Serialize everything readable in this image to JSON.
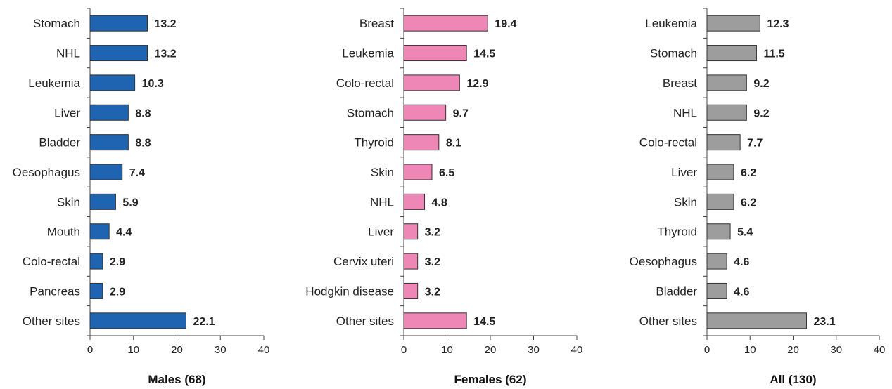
{
  "chart_data": [
    {
      "type": "bar",
      "orientation": "horizontal",
      "xlabel": "Males (68)",
      "bar_color": "#1f64b0",
      "xlim": [
        0,
        40
      ],
      "xticks": [
        0,
        10,
        20,
        30,
        40
      ],
      "categories": [
        "Stomach",
        "NHL",
        "Leukemia",
        "Liver",
        "Bladder",
        "Oesophagus",
        "Skin",
        "Mouth",
        "Colo-rectal",
        "Pancreas",
        "Other sites"
      ],
      "values": [
        13.2,
        13.2,
        10.3,
        8.8,
        8.8,
        7.4,
        5.9,
        4.4,
        2.9,
        2.9,
        22.1
      ],
      "value_labels": [
        "13.2",
        "13.2",
        "10.3",
        "8.8",
        "8.8",
        "7.4",
        "5.9",
        "4.4",
        "2.9",
        "2.9",
        "22.1"
      ],
      "grid": false
    },
    {
      "type": "bar",
      "orientation": "horizontal",
      "xlabel": "Females (62)",
      "bar_color": "#ee86b6",
      "xlim": [
        0,
        40
      ],
      "xticks": [
        0,
        10,
        20,
        30,
        40
      ],
      "categories": [
        "Breast",
        "Leukemia",
        "Colo-rectal",
        "Stomach",
        "Thyroid",
        "Skin",
        "NHL",
        "Liver",
        "Cervix uteri",
        "Hodgkin disease",
        "Other sites"
      ],
      "values": [
        19.4,
        14.5,
        12.9,
        9.7,
        8.1,
        6.5,
        4.8,
        3.2,
        3.2,
        3.2,
        14.5
      ],
      "value_labels": [
        "19.4",
        "14.5",
        "12.9",
        "9.7",
        "8.1",
        "6.5",
        "4.8",
        "3.2",
        "3.2",
        "3.2",
        "14.5"
      ],
      "grid": false
    },
    {
      "type": "bar",
      "orientation": "horizontal",
      "xlabel": "All (130)",
      "bar_color": "#9d9d9d",
      "xlim": [
        0,
        40
      ],
      "xticks": [
        0,
        10,
        20,
        30,
        40
      ],
      "categories": [
        "Leukemia",
        "Stomach",
        "Breast",
        "NHL",
        "Colo-rectal",
        "Liver",
        "Skin",
        "Thyroid",
        "Oesophagus",
        "Bladder",
        "Other sites"
      ],
      "values": [
        12.3,
        11.5,
        9.2,
        9.2,
        7.7,
        6.2,
        6.2,
        5.4,
        4.6,
        4.6,
        23.1
      ],
      "value_labels": [
        "12.3",
        "11.5",
        "9.2",
        "9.2",
        "7.7",
        "6.2",
        "6.2",
        "5.4",
        "4.6",
        "4.6",
        "23.1"
      ],
      "grid": false
    }
  ]
}
